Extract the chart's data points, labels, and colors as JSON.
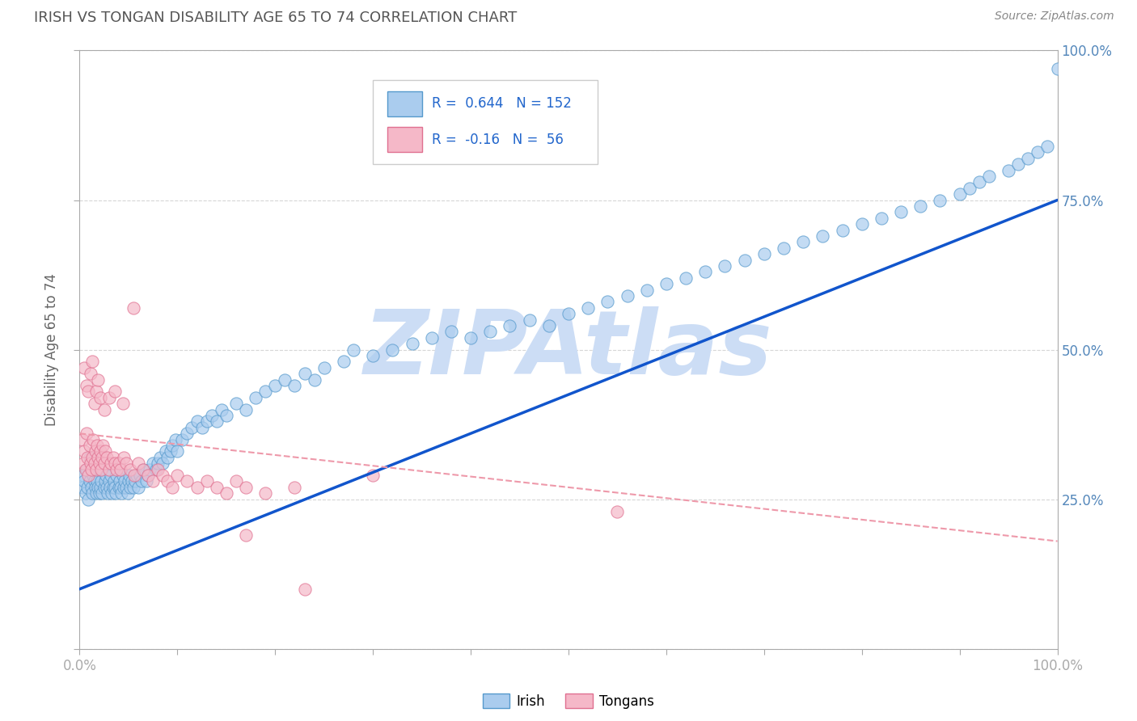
{
  "title": "IRISH VS TONGAN DISABILITY AGE 65 TO 74 CORRELATION CHART",
  "source_text": "Source: ZipAtlas.com",
  "ylabel": "Disability Age 65 to 74",
  "xlim": [
    0.0,
    1.0
  ],
  "ylim": [
    0.0,
    1.0
  ],
  "irish_color": "#aaccee",
  "irish_edge_color": "#5599cc",
  "tongan_color": "#f5b8c8",
  "tongan_edge_color": "#e07090",
  "irish_line_color": "#1155cc",
  "tongan_line_color": "#ee99aa",
  "irish_R": 0.644,
  "irish_N": 152,
  "tongan_R": -0.16,
  "tongan_N": 56,
  "legend_color": "#2266cc",
  "title_color": "#555555",
  "watermark": "ZIPAtlas",
  "watermark_color": "#ccddf5",
  "background_color": "#ffffff",
  "grid_color": "#cccccc",
  "axis_color": "#aaaaaa",
  "tick_color": "#5588bb",
  "irish_trend_x0": 0.0,
  "irish_trend_y0": 0.1,
  "irish_trend_x1": 1.0,
  "irish_trend_y1": 0.75,
  "tongan_trend_x0": 0.0,
  "tongan_trend_y0": 0.36,
  "tongan_trend_x1": 1.0,
  "tongan_trend_y1": 0.18,
  "irish_x": [
    0.003,
    0.004,
    0.005,
    0.006,
    0.007,
    0.008,
    0.009,
    0.01,
    0.01,
    0.012,
    0.013,
    0.014,
    0.015,
    0.016,
    0.017,
    0.018,
    0.019,
    0.02,
    0.02,
    0.021,
    0.022,
    0.023,
    0.025,
    0.026,
    0.027,
    0.028,
    0.029,
    0.03,
    0.031,
    0.032,
    0.033,
    0.034,
    0.035,
    0.036,
    0.037,
    0.038,
    0.04,
    0.041,
    0.042,
    0.043,
    0.044,
    0.045,
    0.046,
    0.048,
    0.049,
    0.05,
    0.051,
    0.052,
    0.053,
    0.055,
    0.057,
    0.058,
    0.06,
    0.062,
    0.063,
    0.065,
    0.068,
    0.07,
    0.072,
    0.075,
    0.078,
    0.08,
    0.082,
    0.085,
    0.088,
    0.09,
    0.093,
    0.095,
    0.098,
    0.1,
    0.105,
    0.11,
    0.115,
    0.12,
    0.125,
    0.13,
    0.135,
    0.14,
    0.145,
    0.15,
    0.16,
    0.17,
    0.18,
    0.19,
    0.2,
    0.21,
    0.22,
    0.23,
    0.24,
    0.25,
    0.27,
    0.28,
    0.3,
    0.32,
    0.34,
    0.36,
    0.38,
    0.4,
    0.42,
    0.44,
    0.46,
    0.48,
    0.5,
    0.52,
    0.54,
    0.56,
    0.58,
    0.6,
    0.62,
    0.64,
    0.66,
    0.68,
    0.7,
    0.72,
    0.74,
    0.76,
    0.78,
    0.8,
    0.82,
    0.84,
    0.86,
    0.88,
    0.9,
    0.91,
    0.92,
    0.93,
    0.95,
    0.96,
    0.97,
    0.98,
    0.99,
    1.0
  ],
  "irish_y": [
    0.27,
    0.29,
    0.28,
    0.26,
    0.3,
    0.27,
    0.25,
    0.28,
    0.32,
    0.27,
    0.26,
    0.29,
    0.28,
    0.27,
    0.26,
    0.28,
    0.27,
    0.26,
    0.3,
    0.27,
    0.28,
    0.26,
    0.27,
    0.28,
    0.29,
    0.27,
    0.26,
    0.28,
    0.27,
    0.29,
    0.26,
    0.27,
    0.28,
    0.27,
    0.26,
    0.29,
    0.27,
    0.28,
    0.27,
    0.26,
    0.29,
    0.27,
    0.28,
    0.27,
    0.26,
    0.28,
    0.29,
    0.27,
    0.28,
    0.27,
    0.28,
    0.29,
    0.27,
    0.29,
    0.28,
    0.3,
    0.28,
    0.29,
    0.3,
    0.31,
    0.3,
    0.31,
    0.32,
    0.31,
    0.33,
    0.32,
    0.33,
    0.34,
    0.35,
    0.33,
    0.35,
    0.36,
    0.37,
    0.38,
    0.37,
    0.38,
    0.39,
    0.38,
    0.4,
    0.39,
    0.41,
    0.4,
    0.42,
    0.43,
    0.44,
    0.45,
    0.44,
    0.46,
    0.45,
    0.47,
    0.48,
    0.5,
    0.49,
    0.5,
    0.51,
    0.52,
    0.53,
    0.52,
    0.53,
    0.54,
    0.55,
    0.54,
    0.56,
    0.57,
    0.58,
    0.59,
    0.6,
    0.61,
    0.62,
    0.63,
    0.64,
    0.65,
    0.66,
    0.67,
    0.68,
    0.69,
    0.7,
    0.71,
    0.72,
    0.73,
    0.74,
    0.75,
    0.76,
    0.77,
    0.78,
    0.79,
    0.8,
    0.81,
    0.82,
    0.83,
    0.84,
    0.97
  ],
  "tongan_x": [
    0.003,
    0.004,
    0.005,
    0.006,
    0.007,
    0.008,
    0.009,
    0.01,
    0.011,
    0.012,
    0.013,
    0.014,
    0.015,
    0.016,
    0.017,
    0.018,
    0.019,
    0.02,
    0.021,
    0.022,
    0.023,
    0.024,
    0.025,
    0.026,
    0.028,
    0.03,
    0.032,
    0.034,
    0.036,
    0.038,
    0.04,
    0.042,
    0.045,
    0.048,
    0.052,
    0.056,
    0.06,
    0.065,
    0.07,
    0.075,
    0.08,
    0.085,
    0.09,
    0.095,
    0.1,
    0.11,
    0.12,
    0.13,
    0.14,
    0.15,
    0.16,
    0.17,
    0.19,
    0.22,
    0.3,
    0.55
  ],
  "tongan_y": [
    0.35,
    0.31,
    0.33,
    0.3,
    0.36,
    0.32,
    0.29,
    0.34,
    0.31,
    0.3,
    0.32,
    0.35,
    0.31,
    0.33,
    0.3,
    0.34,
    0.32,
    0.31,
    0.33,
    0.3,
    0.32,
    0.34,
    0.31,
    0.33,
    0.32,
    0.3,
    0.31,
    0.32,
    0.31,
    0.3,
    0.31,
    0.3,
    0.32,
    0.31,
    0.3,
    0.29,
    0.31,
    0.3,
    0.29,
    0.28,
    0.3,
    0.29,
    0.28,
    0.27,
    0.29,
    0.28,
    0.27,
    0.28,
    0.27,
    0.26,
    0.28,
    0.27,
    0.26,
    0.27,
    0.29,
    0.23
  ],
  "tongan_outlier_x": [
    0.005,
    0.007,
    0.009,
    0.011,
    0.013,
    0.015,
    0.017,
    0.019,
    0.021,
    0.025,
    0.03,
    0.036,
    0.044,
    0.055,
    0.17,
    0.23
  ],
  "tongan_outlier_y": [
    0.47,
    0.44,
    0.43,
    0.46,
    0.48,
    0.41,
    0.43,
    0.45,
    0.42,
    0.4,
    0.42,
    0.43,
    0.41,
    0.57,
    0.19,
    0.1
  ]
}
